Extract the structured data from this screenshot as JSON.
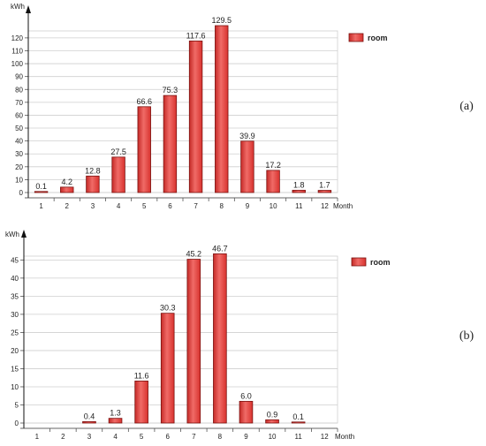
{
  "chart_data": [
    {
      "type": "bar",
      "panel_label": "(a)",
      "ylabel": "kWh",
      "xlabel": "Month",
      "categories": [
        "1",
        "2",
        "3",
        "4",
        "5",
        "6",
        "7",
        "8",
        "9",
        "10",
        "11",
        "12"
      ],
      "series": [
        {
          "name": "room",
          "values": [
            0.1,
            4.2,
            12.8,
            27.5,
            66.6,
            75.3,
            117.6,
            129.5,
            39.9,
            17.2,
            1.8,
            1.7
          ]
        }
      ],
      "data_labels": [
        "0.1",
        "4.2",
        "12.8",
        "27.5",
        "66.6",
        "75.3",
        "117.6",
        "129.5",
        "39.9",
        "17.2",
        "1.8",
        "1.7"
      ],
      "yticks": [
        0,
        10,
        20,
        30,
        40,
        50,
        60,
        70,
        80,
        90,
        100,
        110,
        120
      ],
      "ylim": [
        0,
        135
      ],
      "grid": true,
      "legend_position": "top-right",
      "bar_color": "#e8413d"
    },
    {
      "type": "bar",
      "panel_label": "(b)",
      "ylabel": "kWh",
      "xlabel": "Month",
      "categories": [
        "1",
        "2",
        "3",
        "4",
        "5",
        "6",
        "7",
        "8",
        "9",
        "10",
        "11",
        "12"
      ],
      "series": [
        {
          "name": "room",
          "values": [
            null,
            null,
            0.4,
            1.3,
            11.6,
            30.3,
            45.2,
            46.7,
            6.0,
            0.9,
            0.1,
            null
          ]
        }
      ],
      "data_labels": [
        "",
        "",
        "0.4",
        "1.3",
        "11.6",
        "30.3",
        "45.2",
        "46.7",
        "6.0",
        "0.9",
        "0.1",
        ""
      ],
      "yticks": [
        0,
        5,
        10,
        15,
        20,
        25,
        30,
        35,
        40,
        45
      ],
      "ylim": [
        0,
        48.5
      ],
      "grid": true,
      "legend_position": "top-right",
      "bar_color": "#e8413d"
    }
  ]
}
